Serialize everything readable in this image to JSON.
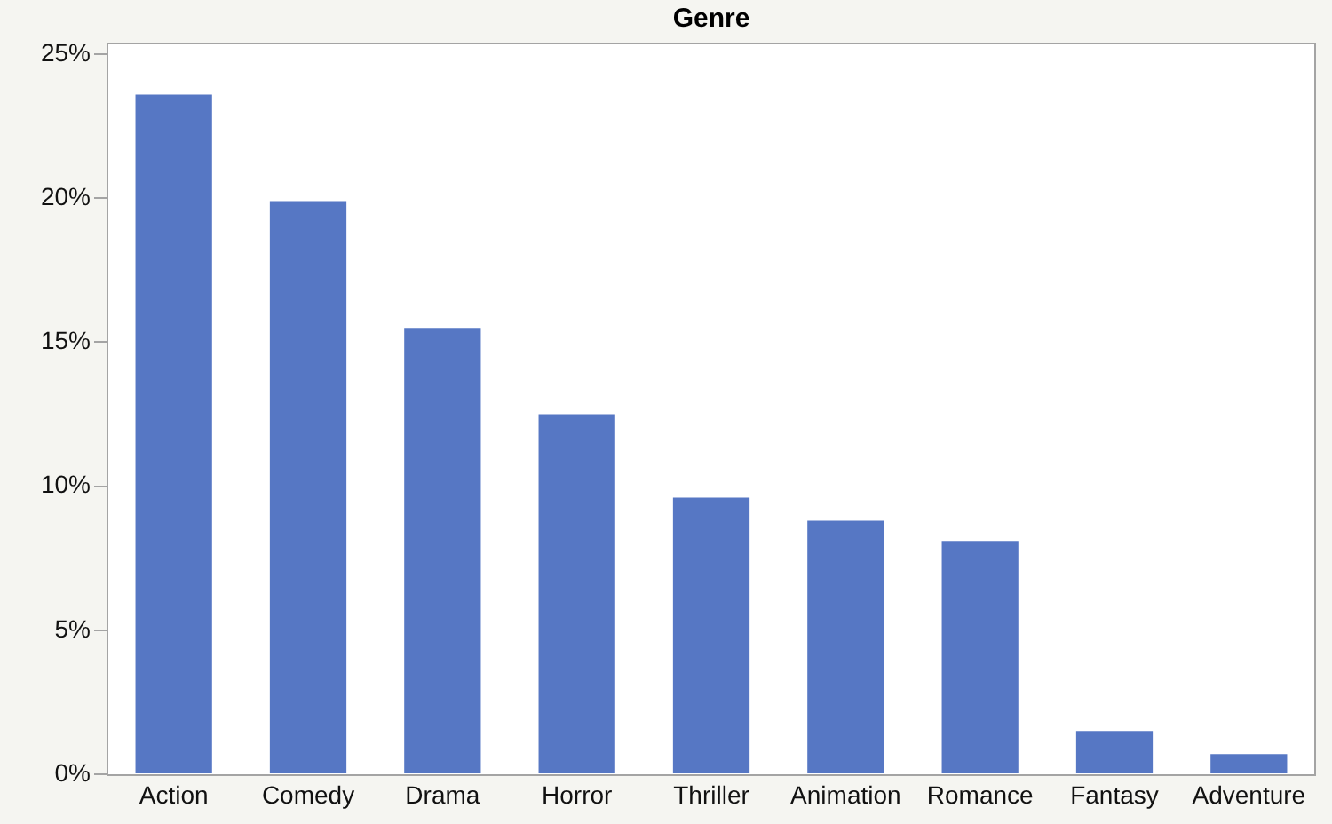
{
  "chart_data": {
    "type": "bar",
    "title": "Genre",
    "categories": [
      "Action",
      "Comedy",
      "Drama",
      "Horror",
      "Thriller",
      "Animation",
      "Romance",
      "Fantasy",
      "Adventure"
    ],
    "values": [
      23.6,
      19.9,
      15.5,
      12.5,
      9.6,
      8.8,
      8.1,
      1.5,
      0.7
    ],
    "color": "#5677c4",
    "ylim": [
      0,
      25.4
    ],
    "yticks": [
      {
        "value": 0,
        "label": "0%"
      },
      {
        "value": 5,
        "label": "5%"
      },
      {
        "value": 10,
        "label": "10%"
      },
      {
        "value": 15,
        "label": "15%"
      },
      {
        "value": 20,
        "label": "20%"
      },
      {
        "value": 25,
        "label": "25%"
      }
    ],
    "grid": false,
    "legend": false
  }
}
